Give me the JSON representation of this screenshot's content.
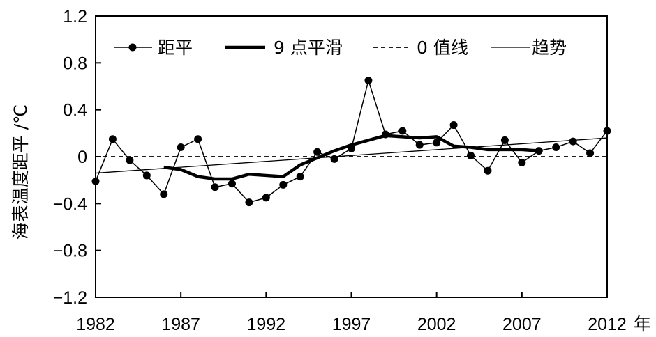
{
  "chart_data": {
    "type": "line",
    "ylabel": "海表温度距平 /℃",
    "x_unit_label": "年",
    "xlim": [
      1982,
      2012
    ],
    "ylim": [
      -1.2,
      1.2
    ],
    "x_ticks": [
      1982,
      1987,
      1992,
      1997,
      2002,
      2007,
      2012
    ],
    "x_tick_labels": [
      "1982",
      "1987",
      "1992",
      "1997",
      "2002",
      "2007",
      "2012"
    ],
    "y_ticks": [
      -1.2,
      -0.8,
      -0.4,
      0,
      0.4,
      0.8,
      1.2
    ],
    "y_tick_labels": [
      "−1.2",
      "−0.8",
      "−0.4",
      "0",
      "0.4",
      "0.8",
      "1.2"
    ],
    "grid": false,
    "legend_position": "top",
    "series": [
      {
        "name": "距平",
        "style": "thin line with circle markers",
        "x": [
          1982,
          1983,
          1984,
          1985,
          1986,
          1987,
          1988,
          1989,
          1990,
          1991,
          1992,
          1993,
          1994,
          1995,
          1996,
          1997,
          1998,
          1999,
          2000,
          2001,
          2002,
          2003,
          2004,
          2005,
          2006,
          2007,
          2008,
          2009,
          2010,
          2011,
          2012
        ],
        "y": [
          -0.21,
          0.15,
          -0.03,
          -0.16,
          -0.32,
          0.08,
          0.15,
          -0.26,
          -0.23,
          -0.39,
          -0.35,
          -0.24,
          -0.17,
          0.04,
          -0.02,
          0.07,
          0.65,
          0.19,
          0.22,
          0.1,
          0.12,
          0.27,
          0.01,
          -0.12,
          0.14,
          -0.05,
          0.05,
          0.08,
          0.13,
          0.03,
          0.22
        ]
      },
      {
        "name": "9 点平滑",
        "style": "thick line",
        "x": [
          1986,
          1987,
          1988,
          1989,
          1990,
          1991,
          1992,
          1993,
          1994,
          1995,
          1996,
          1997,
          1998,
          1999,
          2000,
          2001,
          2002,
          2003,
          2004,
          2005,
          2006,
          2007,
          2008
        ],
        "y": [
          -0.09,
          -0.11,
          -0.17,
          -0.19,
          -0.19,
          -0.15,
          -0.16,
          -0.17,
          -0.07,
          -0.01,
          0.05,
          0.1,
          0.14,
          0.18,
          0.17,
          0.16,
          0.17,
          0.09,
          0.08,
          0.06,
          0.06,
          0.06,
          0.05
        ]
      },
      {
        "name": "0 值线",
        "style": "dashed line",
        "x": [
          1982,
          2012
        ],
        "y": [
          0,
          0
        ]
      },
      {
        "name": "趋势",
        "style": "thin line",
        "x": [
          1982,
          2012
        ],
        "y": [
          -0.14,
          0.16
        ]
      }
    ]
  }
}
